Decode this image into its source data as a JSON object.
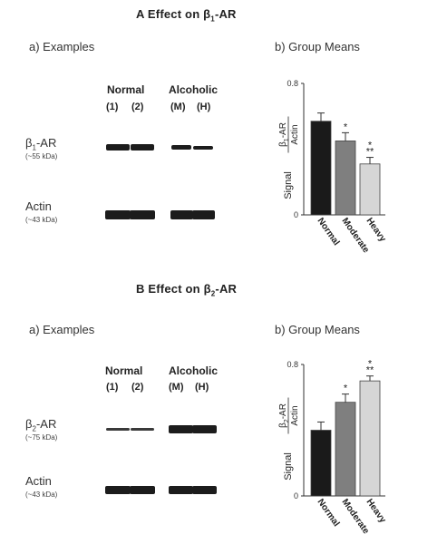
{
  "panel_a": {
    "title_prefix": "A  Effect on β",
    "title_sub": "1",
    "title_suffix": "-AR",
    "examples_title": "a) Examples",
    "means_title": "b) Group Means",
    "lane_groups": [
      "Normal",
      "Alcoholic"
    ],
    "lane_numbers": [
      "(1)",
      "(2)",
      "(M)",
      "(H)"
    ],
    "receptor_label_prefix": "β",
    "receptor_label_sub": "1",
    "receptor_label_suffix": "-AR",
    "receptor_kda": "(~55 kDa)",
    "actin_label": "Actin",
    "actin_kda": "(~43 kDa)",
    "receptor_band_intensity": [
      1.0,
      1.0,
      0.8,
      0.55
    ],
    "actin_band_intensity": [
      1.0,
      1.0,
      1.0,
      1.0
    ]
  },
  "panel_b": {
    "title_prefix": "B  Effect on β",
    "title_sub": "2",
    "title_suffix": "-AR",
    "examples_title": "a) Examples",
    "means_title": "b) Group Means",
    "lane_groups": [
      "Normal",
      "Alcoholic"
    ],
    "lane_numbers": [
      "(1)",
      "(2)",
      "(M)",
      "(H)"
    ],
    "receptor_label_prefix": "β",
    "receptor_label_sub": "2",
    "receptor_label_suffix": "-AR",
    "receptor_kda": "(~75 kDa)",
    "actin_label": "Actin",
    "actin_kda": "(~43 kDa)",
    "receptor_band_intensity": [
      0.55,
      0.55,
      1.0,
      1.0
    ],
    "actin_band_intensity": [
      1.0,
      1.0,
      1.0,
      1.0
    ]
  },
  "chart_data": [
    {
      "type": "bar",
      "title": "",
      "ylabel_signal": "Signal",
      "ylabel_numerator_prefix": "β",
      "ylabel_numerator_sub": "1",
      "ylabel_numerator_suffix": "-AR",
      "ylabel_denominator": "Actin",
      "categories": [
        "Normal",
        "Moderate",
        "Heavy"
      ],
      "values": [
        0.57,
        0.45,
        0.31
      ],
      "errors": [
        0.05,
        0.05,
        0.04
      ],
      "annotations": [
        "",
        "*",
        "*\n**"
      ],
      "ylim": [
        0,
        0.8
      ],
      "yticks": [
        "0",
        "0.8"
      ],
      "colors": [
        "#1a1a1a",
        "#7f7f7f",
        "#d6d6d6"
      ]
    },
    {
      "type": "bar",
      "title": "",
      "ylabel_signal": "Signal",
      "ylabel_numerator_prefix": "β",
      "ylabel_numerator_sub": "2",
      "ylabel_numerator_suffix": "-AR",
      "ylabel_denominator": "Actin",
      "categories": [
        "Normal",
        "Moderate",
        "Heavy"
      ],
      "values": [
        0.4,
        0.57,
        0.7
      ],
      "errors": [
        0.05,
        0.05,
        0.03
      ],
      "annotations": [
        "",
        "*",
        "*\n**"
      ],
      "ylim": [
        0,
        0.8
      ],
      "yticks": [
        "0",
        "0.8"
      ],
      "colors": [
        "#1a1a1a",
        "#7f7f7f",
        "#d6d6d6"
      ]
    }
  ]
}
